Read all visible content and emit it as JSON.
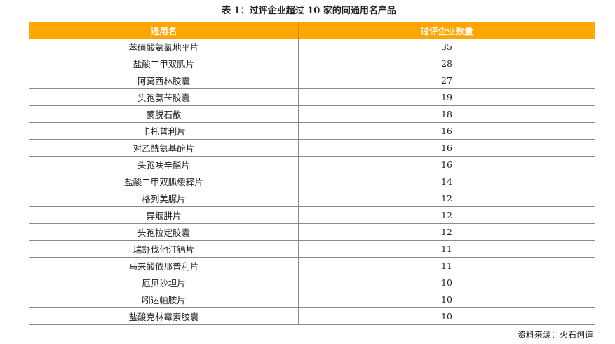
{
  "title": "表 1：过评企业超过 10 家的同通用名产品",
  "columns": [
    "通用名",
    "过评企业数量"
  ],
  "rows": [
    {
      "name": "苯磺酸氨氯地平片",
      "count": "35"
    },
    {
      "name": "盐酸二甲双胍片",
      "count": "28"
    },
    {
      "name": "阿莫西林胶囊",
      "count": "27"
    },
    {
      "name": "头孢氨苄胶囊",
      "count": "19"
    },
    {
      "name": "蒙脱石散",
      "count": "18"
    },
    {
      "name": "卡托普利片",
      "count": "16"
    },
    {
      "name": "对乙酰氨基酚片",
      "count": "16"
    },
    {
      "name": "头孢呋辛酯片",
      "count": "16"
    },
    {
      "name": "盐酸二甲双胍缓释片",
      "count": "14"
    },
    {
      "name": "格列美脲片",
      "count": "12"
    },
    {
      "name": "异烟肼片",
      "count": "12"
    },
    {
      "name": "头孢拉定胶囊",
      "count": "12"
    },
    {
      "name": "瑞舒伐他汀钙片",
      "count": "11"
    },
    {
      "name": "马来酸依那普利片",
      "count": "11"
    },
    {
      "name": "厄贝沙坦片",
      "count": "10"
    },
    {
      "name": "吲达帕胺片",
      "count": "10"
    },
    {
      "name": "盐酸克林霉素胶囊",
      "count": "10"
    }
  ],
  "source": "资料来源：火石创造",
  "colors": {
    "header_bg": "#FFA602"
  }
}
